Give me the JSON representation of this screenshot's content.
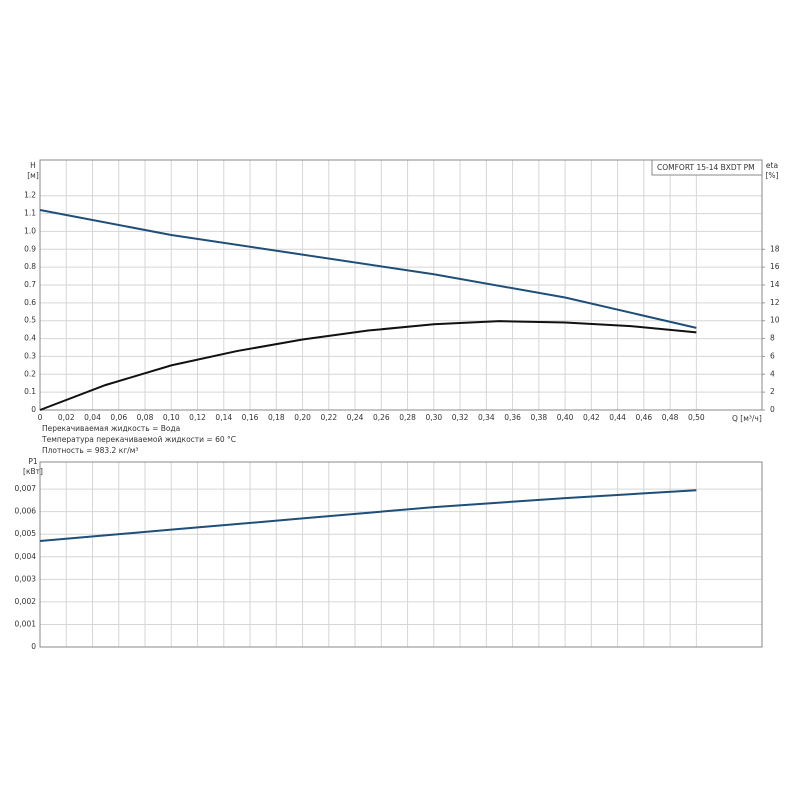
{
  "chart_data": [
    {
      "type": "line",
      "legend_title": "COMFORT 15-14 BXDT PM",
      "y_label": "H",
      "y_unit": "[м]",
      "y2_label": "eta",
      "y2_unit": "[%]",
      "x_label": "Q [м³/ч]",
      "notes": [
        "Перекачиваемая жидкость = Вода",
        "Температура перекачиваемой жидкости = 60 °C",
        "Плотность = 983.2 кг/м³"
      ],
      "xlim": [
        0,
        0.55
      ],
      "ylim": [
        0,
        1.4
      ],
      "y2lim": [
        0,
        28
      ],
      "grid": true,
      "xticks": [
        0,
        {
          "value": 0.02,
          "label": "0,02"
        },
        {
          "value": 0.04,
          "label": "0,04"
        },
        {
          "value": 0.06,
          "label": "0,06"
        },
        {
          "value": 0.08,
          "label": "0,08"
        },
        {
          "value": 0.1,
          "label": "0,10"
        },
        {
          "value": 0.12,
          "label": "0,12"
        },
        {
          "value": 0.14,
          "label": "0,14"
        },
        {
          "value": 0.16,
          "label": "0,16"
        },
        {
          "value": 0.18,
          "label": "0,18"
        },
        {
          "value": 0.2,
          "label": "0,20"
        },
        {
          "value": 0.22,
          "label": "0,22"
        },
        {
          "value": 0.24,
          "label": "0,24"
        },
        {
          "value": 0.26,
          "label": "0,26"
        },
        {
          "value": 0.28,
          "label": "0,28"
        },
        {
          "value": 0.3,
          "label": "0,30"
        },
        {
          "value": 0.32,
          "label": "0,32"
        },
        {
          "value": 0.34,
          "label": "0,34"
        },
        {
          "value": 0.36,
          "label": "0,36"
        },
        {
          "value": 0.38,
          "label": "0,38"
        },
        {
          "value": 0.4,
          "label": "0,40"
        },
        {
          "value": 0.42,
          "label": "0,42"
        },
        {
          "value": 0.44,
          "label": "0,44"
        },
        {
          "value": 0.46,
          "label": "0,46"
        },
        {
          "value": 0.48,
          "label": "0,48"
        },
        {
          "value": 0.5,
          "label": "0,50"
        }
      ],
      "yticks": [
        0,
        0.1,
        0.2,
        0.3,
        0.4,
        0.5,
        0.6,
        0.7,
        0.8,
        0.9,
        {
          "value": 1,
          "label": "1.0"
        },
        1.1,
        1.2
      ],
      "y2ticks": [
        0,
        2,
        4,
        6,
        8,
        10,
        12,
        14,
        16,
        18
      ],
      "series": [
        {
          "color": "#1f4e79",
          "x": [
            0,
            0.1,
            0.2,
            0.3,
            0.4,
            0.5
          ],
          "values": [
            1.12,
            0.98,
            0.87,
            0.76,
            0.63,
            0.46
          ]
        },
        {
          "color": "#111111",
          "axis": "y2",
          "x": [
            0,
            0.05,
            0.1,
            0.15,
            0.2,
            0.25,
            0.3,
            0.35,
            0.4,
            0.45,
            0.5
          ],
          "values": [
            0,
            2.8,
            5.0,
            6.6,
            7.9,
            8.9,
            9.6,
            9.95,
            9.8,
            9.4,
            8.7
          ]
        }
      ]
    },
    {
      "type": "line",
      "y_label": "P1",
      "y_unit": "[кВт]",
      "xlim": [
        0,
        0.55
      ],
      "ylim": [
        0,
        0.0082
      ],
      "grid": true,
      "yticks": [
        0,
        {
          "value": 0.001,
          "label": "0,001"
        },
        {
          "value": 0.002,
          "label": "0,002"
        },
        {
          "value": 0.003,
          "label": "0,003"
        },
        {
          "value": 0.004,
          "label": "0,004"
        },
        {
          "value": 0.005,
          "label": "0,005"
        },
        {
          "value": 0.006,
          "label": "0,006"
        },
        {
          "value": 0.007,
          "label": "0,007"
        }
      ],
      "series": [
        {
          "color": "#1f4e79",
          "x": [
            0,
            0.1,
            0.2,
            0.3,
            0.4,
            0.5
          ],
          "values": [
            0.0047,
            0.0052,
            0.0057,
            0.0062,
            0.0066,
            0.00695
          ]
        }
      ]
    }
  ]
}
